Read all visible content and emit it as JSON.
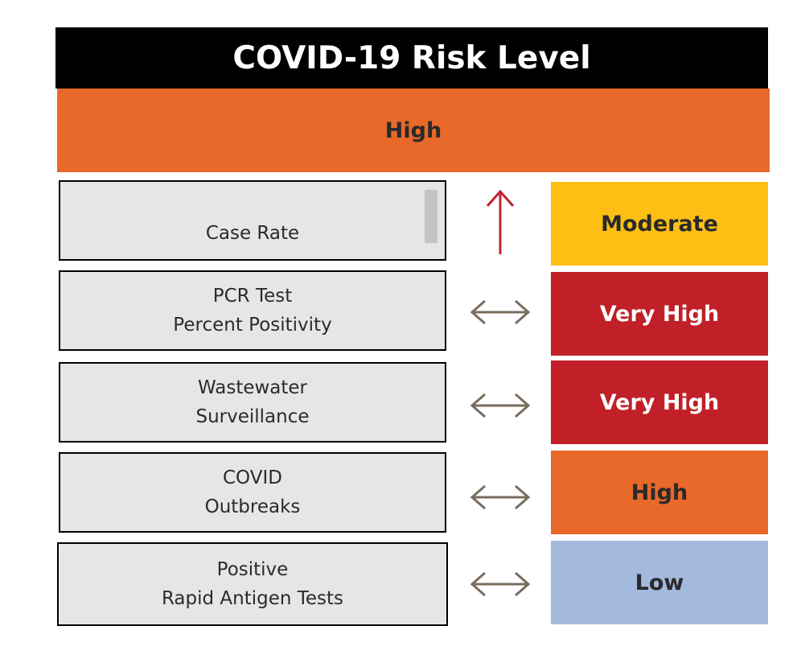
{
  "title": "COVID-19 Risk Level",
  "overall": {
    "label": "High",
    "color": "#e8692a",
    "text_color": "#2a2a2a"
  },
  "rows": [
    {
      "metric_lines": [
        "Case Rate"
      ],
      "trend": "increasing",
      "trend_icon": "up-arrow-icon",
      "trend_color": "#c0242e",
      "level": "Moderate",
      "level_color": "#fdbf14",
      "level_text_color": "#2a2a2a"
    },
    {
      "metric_lines": [
        "PCR Test",
        "Percent Positivity"
      ],
      "trend": "stable",
      "trend_icon": "left-right-arrow-icon",
      "trend_color": "#7a6d5e",
      "level": "Very High",
      "level_color": "#c12028",
      "level_text_color": "#ffffff"
    },
    {
      "metric_lines": [
        "Wastewater",
        "Surveillance"
      ],
      "trend": "stable",
      "trend_icon": "left-right-arrow-icon",
      "trend_color": "#7a6d5e",
      "level": "Very High",
      "level_color": "#c12028",
      "level_text_color": "#ffffff"
    },
    {
      "metric_lines": [
        "COVID",
        "Outbreaks"
      ],
      "trend": "stable",
      "trend_icon": "left-right-arrow-icon",
      "trend_color": "#7a6d5e",
      "level": "High",
      "level_color": "#e8692a",
      "level_text_color": "#2a2a2a"
    },
    {
      "metric_lines": [
        "Positive",
        "Rapid Antigen Tests"
      ],
      "trend": "stable",
      "trend_icon": "left-right-arrow-icon",
      "trend_color": "#7a6d5e",
      "level": "Low",
      "level_color": "#a4b9de",
      "level_text_color": "#2a2a2a"
    }
  ]
}
